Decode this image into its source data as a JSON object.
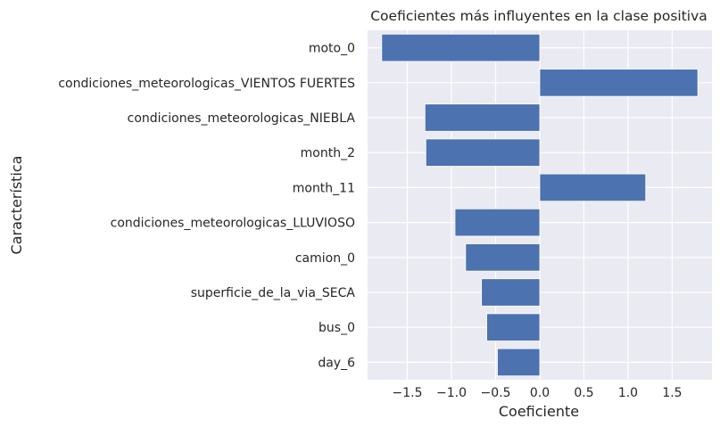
{
  "chart_data": {
    "type": "bar",
    "orientation": "horizontal",
    "title": "Coeficientes más influyentes en la clase positiva",
    "xlabel": "Coeficiente",
    "ylabel": "Característica",
    "categories": [
      "moto_0",
      "condiciones_meteorologicas_VIENTOS FUERTES",
      "condiciones_meteorologicas_NIEBLA",
      "month_2",
      "month_11",
      "condiciones_meteorologicas_LLUVIOSO",
      "camion_0",
      "superficie_de_la_via_SECA",
      "bus_0",
      "day_6"
    ],
    "values": [
      -1.79,
      1.79,
      -1.3,
      -1.29,
      1.2,
      -0.96,
      -0.84,
      -0.66,
      -0.6,
      -0.48
    ],
    "xlim": [
      -1.95,
      1.95
    ],
    "xticks": [
      -1.5,
      -1.0,
      -0.5,
      0.0,
      0.5,
      1.0,
      1.5
    ],
    "xtick_labels": [
      "−1.5",
      "−1.0",
      "−0.5",
      "0.0",
      "0.5",
      "1.0",
      "1.5"
    ],
    "grid": true,
    "colors": {
      "bar": "#4c72b0",
      "background": "#eaeaf2",
      "grid": "#ffffff"
    }
  }
}
